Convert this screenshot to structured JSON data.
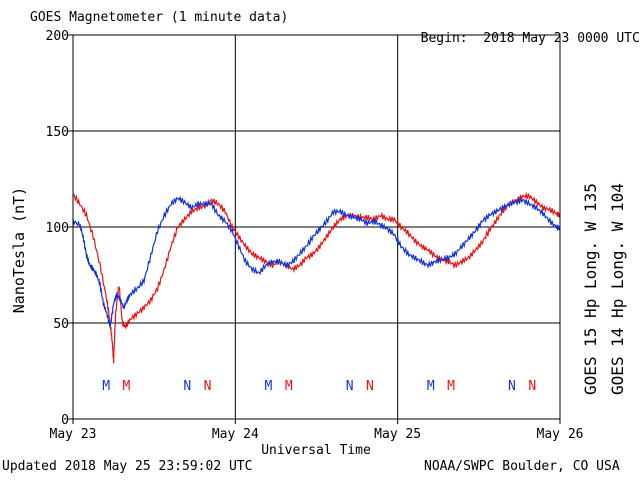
{
  "header": {
    "title": "GOES Magnetometer (1 minute data)",
    "begin_label": "Begin:",
    "begin_value": "2018 May 23 0000 UTC"
  },
  "footer": {
    "updated": "Updated 2018 May 25 23:59:02 UTC",
    "credit": "NOAA/SWPC Boulder, CO USA"
  },
  "colors": {
    "goes15": "#ee1111",
    "goes14": "#1133dd",
    "axis": "#000000",
    "grid": "#000000"
  },
  "chart_data": {
    "type": "line",
    "title": "GOES Magnetometer (1 minute data)",
    "xlabel": "Universal Time",
    "ylabel": "NanoTesla (nT)",
    "xlim": [
      0,
      72
    ],
    "ylim": [
      0,
      200
    ],
    "x_unit": "hours since 2018 May 23 0000 UTC",
    "x_ticks": [
      {
        "x": 0,
        "label": "May 23"
      },
      {
        "x": 24,
        "label": "May 24"
      },
      {
        "x": 48,
        "label": "May 25"
      },
      {
        "x": 72,
        "label": "May 26"
      }
    ],
    "y_ticks": [
      0,
      50,
      100,
      150,
      200
    ],
    "grid": true,
    "markers": [
      {
        "x": 4.9,
        "label": "M",
        "series": "GOES 14"
      },
      {
        "x": 7.9,
        "label": "M",
        "series": "GOES 15"
      },
      {
        "x": 16.9,
        "label": "N",
        "series": "GOES 14"
      },
      {
        "x": 19.9,
        "label": "N",
        "series": "GOES 15"
      },
      {
        "x": 28.9,
        "label": "M",
        "series": "GOES 14"
      },
      {
        "x": 31.9,
        "label": "M",
        "series": "GOES 15"
      },
      {
        "x": 40.9,
        "label": "N",
        "series": "GOES 14"
      },
      {
        "x": 43.9,
        "label": "N",
        "series": "GOES 15"
      },
      {
        "x": 52.9,
        "label": "M",
        "series": "GOES 14"
      },
      {
        "x": 55.9,
        "label": "M",
        "series": "GOES 15"
      },
      {
        "x": 64.9,
        "label": "N",
        "series": "GOES 14"
      },
      {
        "x": 67.9,
        "label": "N",
        "series": "GOES 15"
      }
    ],
    "series": [
      {
        "name": "GOES 15 Hp",
        "legend": "GOES 15 Hp  Long. W 135",
        "color": "#ee1111",
        "points": [
          [
            0,
            117
          ],
          [
            1,
            112
          ],
          [
            2,
            106
          ],
          [
            3,
            95
          ],
          [
            4,
            80
          ],
          [
            5,
            62
          ],
          [
            5.5,
            50
          ],
          [
            5.8,
            40
          ],
          [
            6,
            30
          ],
          [
            6.3,
            55
          ],
          [
            6.8,
            70
          ],
          [
            7.3,
            50
          ],
          [
            7.8,
            48
          ],
          [
            8.5,
            52
          ],
          [
            9.5,
            55
          ],
          [
            10.5,
            58
          ],
          [
            11.5,
            62
          ],
          [
            12.5,
            68
          ],
          [
            13.5,
            78
          ],
          [
            14.5,
            90
          ],
          [
            15.5,
            100
          ],
          [
            16.5,
            104
          ],
          [
            17.5,
            108
          ],
          [
            18.5,
            110
          ],
          [
            19.5,
            111
          ],
          [
            20.5,
            114
          ],
          [
            21.5,
            112
          ],
          [
            22.5,
            108
          ],
          [
            23.5,
            100
          ],
          [
            24.5,
            95
          ],
          [
            25.5,
            90
          ],
          [
            26.5,
            86
          ],
          [
            27.5,
            84
          ],
          [
            28.5,
            82
          ],
          [
            29.5,
            80
          ],
          [
            30.5,
            82
          ],
          [
            31.5,
            80
          ],
          [
            32.5,
            78
          ],
          [
            33.5,
            80
          ],
          [
            34.5,
            84
          ],
          [
            35.5,
            86
          ],
          [
            36.5,
            90
          ],
          [
            37.5,
            95
          ],
          [
            38.5,
            100
          ],
          [
            39.5,
            104
          ],
          [
            40.5,
            106
          ],
          [
            41.5,
            106
          ],
          [
            42.5,
            105
          ],
          [
            43.5,
            105
          ],
          [
            44.5,
            104
          ],
          [
            45.5,
            106
          ],
          [
            46.5,
            104
          ],
          [
            47.5,
            104
          ],
          [
            48.5,
            100
          ],
          [
            49.5,
            97
          ],
          [
            50.5,
            93
          ],
          [
            51.5,
            90
          ],
          [
            52.5,
            88
          ],
          [
            53.5,
            85
          ],
          [
            54.5,
            83
          ],
          [
            55.5,
            82
          ],
          [
            56.5,
            80
          ],
          [
            57.5,
            82
          ],
          [
            58.5,
            84
          ],
          [
            59.5,
            88
          ],
          [
            60.5,
            92
          ],
          [
            61.5,
            98
          ],
          [
            62.5,
            103
          ],
          [
            63.5,
            108
          ],
          [
            64.5,
            112
          ],
          [
            65.5,
            114
          ],
          [
            66.5,
            116
          ],
          [
            67.5,
            116
          ],
          [
            68.5,
            113
          ],
          [
            69.5,
            110
          ],
          [
            70.5,
            109
          ],
          [
            71.5,
            107
          ],
          [
            72,
            106
          ]
        ]
      },
      {
        "name": "GOES 14 Hp",
        "legend": "GOES 14 Hp  Long. W 104",
        "color": "#1133dd",
        "points": [
          [
            0,
            103
          ],
          [
            1,
            101
          ],
          [
            1.5,
            95
          ],
          [
            2,
            85
          ],
          [
            2.5,
            80
          ],
          [
            3,
            78
          ],
          [
            3.5,
            75
          ],
          [
            4,
            70
          ],
          [
            4.5,
            60
          ],
          [
            5,
            55
          ],
          [
            5.5,
            48
          ],
          [
            6,
            60
          ],
          [
            6.5,
            65
          ],
          [
            7,
            62
          ],
          [
            7.5,
            58
          ],
          [
            8,
            62
          ],
          [
            8.5,
            65
          ],
          [
            9.5,
            68
          ],
          [
            10.5,
            72
          ],
          [
            11.5,
            85
          ],
          [
            12.5,
            98
          ],
          [
            13.5,
            106
          ],
          [
            14.5,
            112
          ],
          [
            15.5,
            115
          ],
          [
            16.5,
            113
          ],
          [
            17.5,
            110
          ],
          [
            18.5,
            112
          ],
          [
            19.5,
            112
          ],
          [
            20.5,
            112
          ],
          [
            21.5,
            106
          ],
          [
            22.5,
            103
          ],
          [
            23.5,
            98
          ],
          [
            24.5,
            90
          ],
          [
            25.5,
            82
          ],
          [
            26.5,
            78
          ],
          [
            27.5,
            76
          ],
          [
            28.5,
            80
          ],
          [
            29.5,
            82
          ],
          [
            30.5,
            82
          ],
          [
            31.5,
            80
          ],
          [
            32.5,
            82
          ],
          [
            33.5,
            86
          ],
          [
            34.5,
            90
          ],
          [
            35.5,
            95
          ],
          [
            36.5,
            99
          ],
          [
            37.5,
            103
          ],
          [
            38.5,
            108
          ],
          [
            39.5,
            108
          ],
          [
            40.5,
            106
          ],
          [
            41.5,
            105
          ],
          [
            42.5,
            104
          ],
          [
            43.5,
            102
          ],
          [
            44.5,
            103
          ],
          [
            45.5,
            101
          ],
          [
            46.5,
            99
          ],
          [
            47.5,
            96
          ],
          [
            48.5,
            90
          ],
          [
            49.5,
            86
          ],
          [
            50.5,
            84
          ],
          [
            51.5,
            82
          ],
          [
            52.5,
            80
          ],
          [
            53.5,
            82
          ],
          [
            54.5,
            83
          ],
          [
            55.5,
            84
          ],
          [
            56.5,
            86
          ],
          [
            57.5,
            90
          ],
          [
            58.5,
            94
          ],
          [
            59.5,
            98
          ],
          [
            60.5,
            103
          ],
          [
            61.5,
            106
          ],
          [
            62.5,
            108
          ],
          [
            63.5,
            110
          ],
          [
            64.5,
            112
          ],
          [
            65.5,
            113
          ],
          [
            66.5,
            114
          ],
          [
            67.5,
            112
          ],
          [
            68.5,
            110
          ],
          [
            69.5,
            107
          ],
          [
            70.5,
            103
          ],
          [
            71.5,
            100
          ],
          [
            72,
            99
          ]
        ]
      }
    ]
  }
}
